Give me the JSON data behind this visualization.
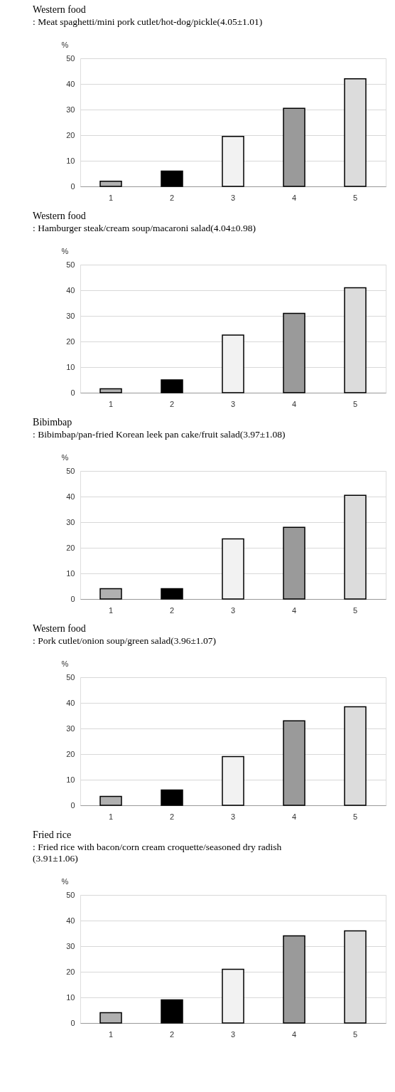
{
  "chart_data": [
    {
      "type": "bar",
      "title": "Western food",
      "subtitle": " : Meat spaghetti/mini pork cutlet/hot-dog/pickle(4.05±1.01)",
      "ylabel": "%",
      "categories": [
        "1",
        "2",
        "3",
        "4",
        "5"
      ],
      "values": [
        2,
        6,
        19.5,
        30.5,
        42
      ],
      "colors": [
        "#b0b0b0",
        "#000000",
        "#f2f2f2",
        "#9a9a9a",
        "#dcdcdc"
      ],
      "ylim": [
        0,
        50
      ],
      "yticks": [
        0,
        10,
        20,
        30,
        40,
        50
      ],
      "grid": "y"
    },
    {
      "type": "bar",
      "title": "Western food",
      "subtitle": " : Hamburger steak/cream soup/macaroni salad(4.04±0.98)",
      "ylabel": "%",
      "categories": [
        "1",
        "2",
        "3",
        "4",
        "5"
      ],
      "values": [
        1.5,
        5,
        22.5,
        31,
        41
      ],
      "colors": [
        "#b0b0b0",
        "#000000",
        "#f2f2f2",
        "#9a9a9a",
        "#dcdcdc"
      ],
      "ylim": [
        0,
        50
      ],
      "yticks": [
        0,
        10,
        20,
        30,
        40,
        50
      ],
      "grid": "y"
    },
    {
      "type": "bar",
      "title": "Bibimbap",
      "subtitle": " : Bibimbap/pan-fried Korean leek pan cake/fruit salad(3.97±1.08)",
      "ylabel": "%",
      "categories": [
        "1",
        "2",
        "3",
        "4",
        "5"
      ],
      "values": [
        4,
        4,
        23.5,
        28,
        40.5
      ],
      "colors": [
        "#b0b0b0",
        "#000000",
        "#f2f2f2",
        "#9a9a9a",
        "#dcdcdc"
      ],
      "ylim": [
        0,
        50
      ],
      "yticks": [
        0,
        10,
        20,
        30,
        40,
        50
      ],
      "grid": "y"
    },
    {
      "type": "bar",
      "title": "Western food",
      "subtitle": " : Pork cutlet/onion soup/green salad(3.96±1.07)",
      "ylabel": "%",
      "categories": [
        "1",
        "2",
        "3",
        "4",
        "5"
      ],
      "values": [
        3.5,
        6,
        19,
        33,
        38.5
      ],
      "colors": [
        "#b0b0b0",
        "#000000",
        "#f2f2f2",
        "#9a9a9a",
        "#dcdcdc"
      ],
      "ylim": [
        0,
        50
      ],
      "yticks": [
        0,
        10,
        20,
        30,
        40,
        50
      ],
      "grid": "y"
    },
    {
      "type": "bar",
      "title": "Fried rice",
      "subtitle": " : Fried rice with bacon/corn cream croquette/seasoned dry radish\n(3.91±1.06)",
      "ylabel": "%",
      "categories": [
        "1",
        "2",
        "3",
        "4",
        "5"
      ],
      "values": [
        4,
        9,
        21,
        34,
        36
      ],
      "colors": [
        "#b0b0b0",
        "#000000",
        "#f2f2f2",
        "#9a9a9a",
        "#dcdcdc"
      ],
      "ylim": [
        0,
        50
      ],
      "yticks": [
        0,
        10,
        20,
        30,
        40,
        50
      ],
      "grid": "y"
    }
  ]
}
